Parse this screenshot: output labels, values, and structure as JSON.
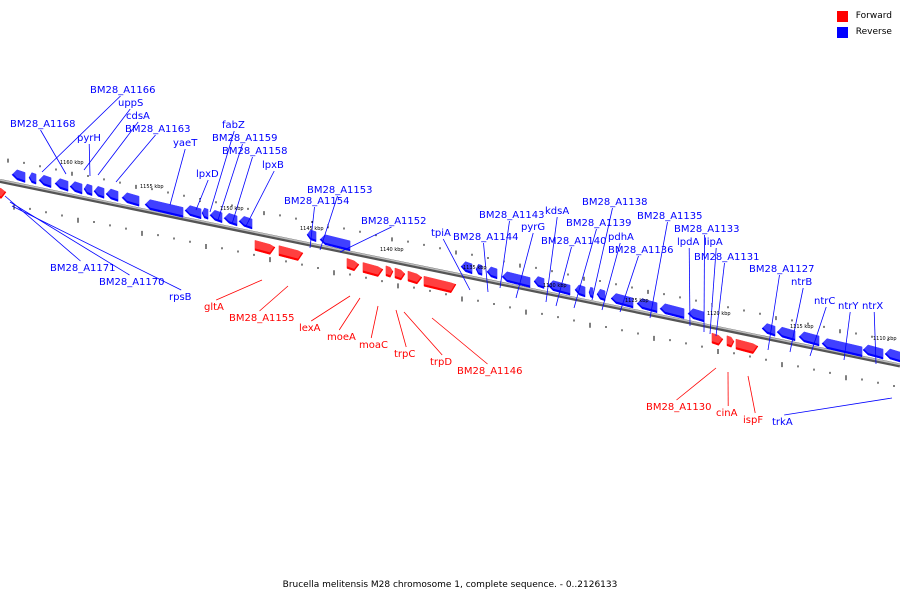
{
  "caption": "Brucella melitensis M28 chromosome 1, complete sequence. - 0..2126133",
  "legend": [
    {
      "label": "Forward",
      "color": "#ff0000"
    },
    {
      "label": "Reverse",
      "color": "#0000ff"
    }
  ],
  "colors": {
    "forward": "#ff0000",
    "reverse": "#0000ff",
    "axis": "#777777"
  },
  "kbp_ticks": [
    "1160 kbp",
    "1155 kbp",
    "1150 kbp",
    "1145 kbp",
    "1140 kbp",
    "1135 kbp",
    "1130 kbp",
    "1125 kbp",
    "1120 kbp",
    "1115 kbp",
    "1110 kbp"
  ],
  "genes": [
    "BM28_A1166",
    "uppS",
    "cdsA",
    "BM28_A1168",
    "pyrH",
    "BM28_A1163",
    "fabZ",
    "BM28_A1159",
    "yaeT",
    "BM28_A1158",
    "lpxD",
    "lpxB",
    "BM28_A1153",
    "BM28_A1154",
    "BM28_A1152",
    "BM28_A1171",
    "BM28_A1170",
    "rpsB",
    "gltA",
    "BM28_A1155",
    "lexA",
    "moeA",
    "moaC",
    "trpC",
    "trpD",
    "BM28_A1146",
    "BM28_A1138",
    "BM28_A1143",
    "kdsA",
    "tpiA",
    "pyrG",
    "BM28_A1144",
    "BM28_A1139",
    "pdhA",
    "BM28_A1140",
    "BM28_A1136",
    "BM28_A1135",
    "BM28_A1133",
    "lpdA",
    "lipA",
    "BM28_A1131",
    "BM28_A1127",
    "ntrB",
    "ntrC",
    "ntrY",
    "ntrX",
    "BM28_A1130",
    "cinA",
    "ispF",
    "trkA"
  ]
}
